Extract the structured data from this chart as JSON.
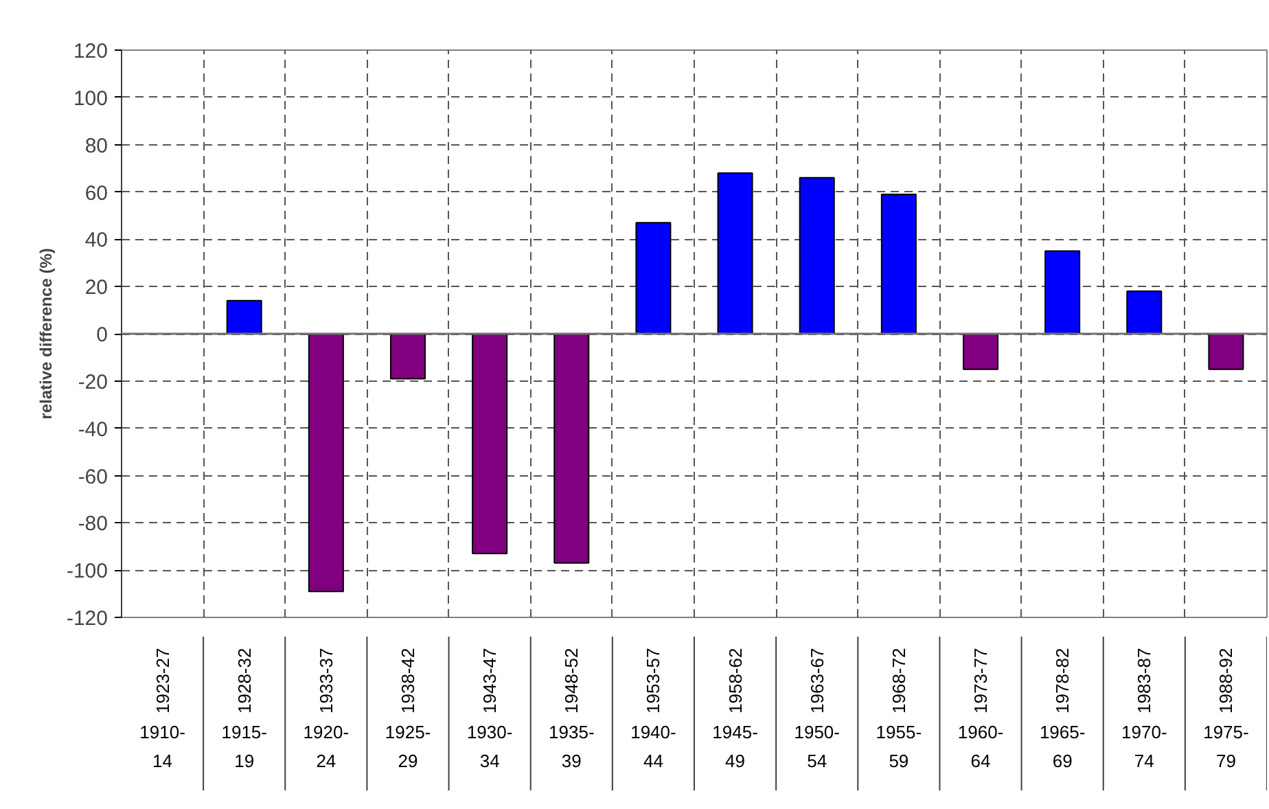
{
  "chart_data": {
    "type": "bar",
    "ylabel": "relative difference (%)",
    "categories": [
      "1910-14",
      "1915-19",
      "1920-24",
      "1925-29",
      "1930-34",
      "1935-39",
      "1940-44",
      "1945-49",
      "1950-54",
      "1955-59",
      "1960-64",
      "1965-69",
      "1970-74",
      "1975-79"
    ],
    "values": [
      null,
      14,
      -109,
      -19,
      -93,
      -97,
      47,
      68,
      66,
      59,
      -15,
      35,
      18,
      -15
    ],
    "colors": [
      "#0000ff",
      "#0000ff",
      "#800080",
      "#800080",
      "#800080",
      "#800080",
      "#0000ff",
      "#0000ff",
      "#0000ff",
      "#0000ff",
      "#800080",
      "#0000ff",
      "#0000ff",
      "#800080"
    ],
    "annotations": [
      "1923-27",
      "1928-32",
      "1933-37",
      "1938-42",
      "1943-47",
      "1948-52",
      "1953-57",
      "1958-62",
      "1963-67",
      "1968-72",
      "1973-77",
      "1978-82",
      "1983-87",
      "1988-92"
    ],
    "ylim": [
      -120,
      120
    ],
    "yticks": [
      -120,
      -100,
      -80,
      -60,
      -40,
      -20,
      0,
      20,
      40,
      60,
      80,
      100,
      120
    ],
    "grid": true
  }
}
